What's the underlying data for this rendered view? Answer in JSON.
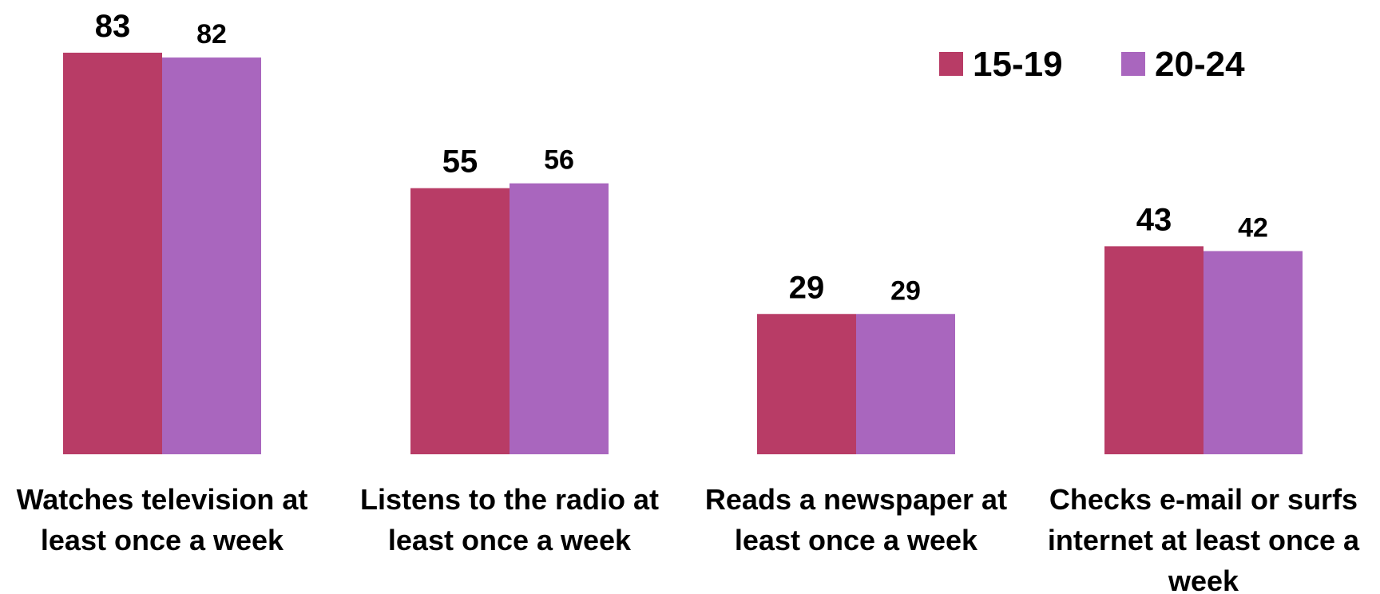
{
  "chart_data": {
    "type": "bar",
    "categories": [
      [
        "Watches television at",
        "least once a week"
      ],
      [
        "Listens to the radio at",
        "least once a week"
      ],
      [
        "Reads a newspaper at",
        "least once a week"
      ],
      [
        "Checks e-mail or surfs",
        "internet at least once a",
        "week"
      ]
    ],
    "series": [
      {
        "name": "15-19",
        "color": "#b83c66",
        "values": [
          83,
          55,
          29,
          43
        ]
      },
      {
        "name": "20-24",
        "color": "#a966be",
        "values": [
          82,
          56,
          29,
          42
        ]
      }
    ],
    "ylim": [
      0,
      83
    ],
    "grid": false,
    "legend": "top-right"
  }
}
